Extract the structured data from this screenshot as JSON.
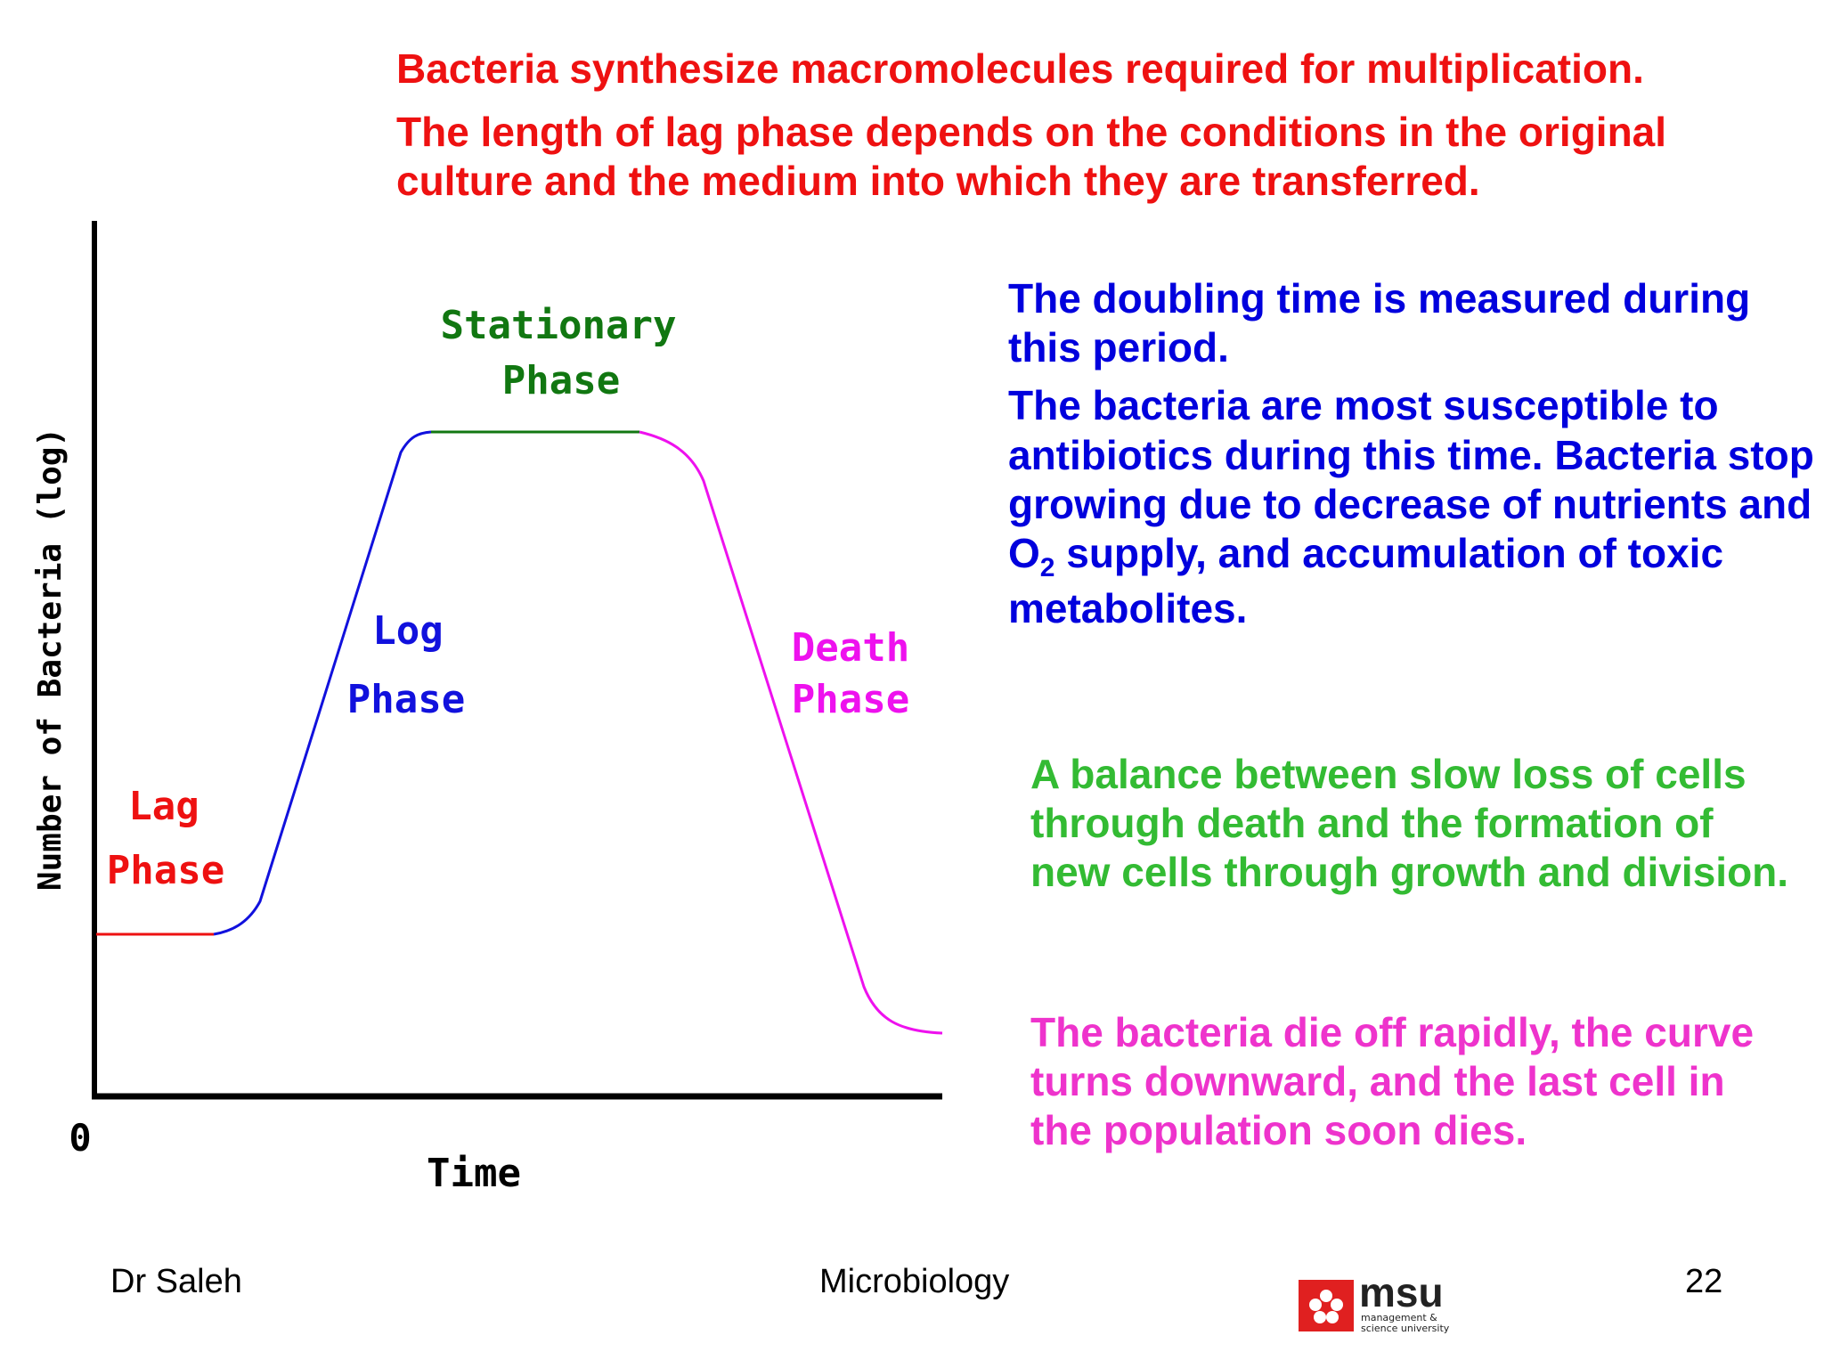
{
  "slide": {
    "red_lines": [
      "Bacteria synthesize macromolecules required for multiplication.",
      "The length of lag phase depends on the conditions in the original culture and the medium into which they are transferred."
    ],
    "blue_lines": [
      "The doubling time is measured during this period.",
      "The bacteria are most susceptible to antibiotics during this time. Bacteria stop growing due to decrease of nutrients and O"
    ],
    "blue_subscript": "2",
    "blue_tail": " supply, and accumulation of toxic metabolites.",
    "green_text": "A balance between slow loss of cells through death and the formation of new cells through growth and division.",
    "magenta_text": "The bacteria die off rapidly, the curve turns downward, and the last cell in the population soon dies."
  },
  "diagram": {
    "y_axis_label": "Number of Bacteria (log)",
    "x_axis_label": "Time",
    "origin_label": "0",
    "phases": {
      "lag": {
        "line1": "Lag",
        "line2": "Phase",
        "color": "#ee1111"
      },
      "log": {
        "line1": "Log",
        "line2": "Phase",
        "color": "#1111dd"
      },
      "stationary": {
        "line1": "Stationary",
        "line2": "Phase",
        "color": "#117711"
      },
      "death": {
        "line1": "Death",
        "line2": "Phase",
        "color": "#ee11ee"
      }
    }
  },
  "footer": {
    "author": "Dr Saleh",
    "course": "Microbiology",
    "page_number": "22",
    "logo_name": "msu",
    "logo_sub1": "management &",
    "logo_sub2": "science university"
  }
}
